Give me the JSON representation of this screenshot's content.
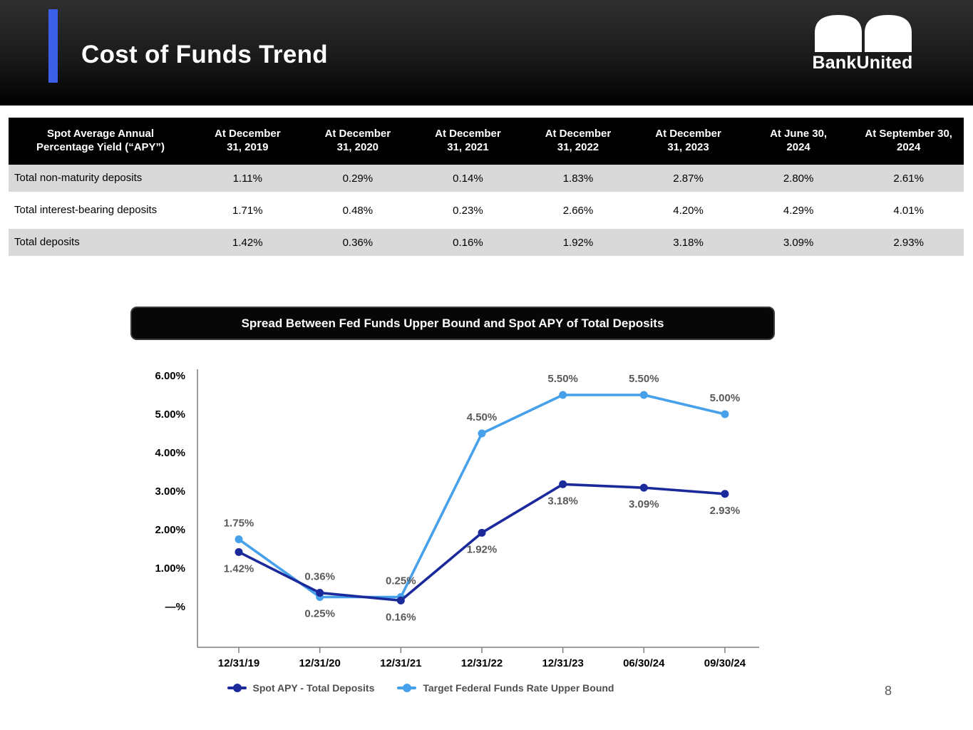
{
  "header": {
    "title": "Cost of Funds Trend",
    "logo_text": "BankUnited",
    "accent_color": "#3C5FE8"
  },
  "table": {
    "first_header": {
      "line1": "Spot Average Annual",
      "line2": "Percentage Yield (“APY”)"
    },
    "col_headers": [
      {
        "line1": "At December",
        "line2": "31, 2019"
      },
      {
        "line1": "At December",
        "line2": "31, 2020"
      },
      {
        "line1": "At December",
        "line2": "31, 2021"
      },
      {
        "line1": "At December",
        "line2": "31, 2022"
      },
      {
        "line1": "At December",
        "line2": "31, 2023"
      },
      {
        "line1": "At June 30,",
        "line2": "2024"
      },
      {
        "line1": "At September 30,",
        "line2": "2024"
      }
    ],
    "rows": [
      {
        "label": "Total non-maturity deposits",
        "values": [
          "1.11%",
          "0.29%",
          "0.14%",
          "1.83%",
          "2.87%",
          "2.80%",
          "2.61%"
        ]
      },
      {
        "label": "Total interest-bearing deposits",
        "values": [
          "1.71%",
          "0.48%",
          "0.23%",
          "2.66%",
          "4.20%",
          "4.29%",
          "4.01%"
        ]
      },
      {
        "label": "Total deposits",
        "values": [
          "1.42%",
          "0.36%",
          "0.16%",
          "1.92%",
          "3.18%",
          "3.09%",
          "2.93%"
        ]
      }
    ]
  },
  "chart_data": {
    "type": "line",
    "title": "Spread Between Fed Funds Upper Bound and Spot APY of Total Deposits",
    "x_labels": [
      "12/31/19",
      "12/31/20",
      "12/31/21",
      "12/31/22",
      "12/31/23",
      "06/30/24",
      "09/30/24"
    ],
    "y_ticks": [
      {
        "value": 6,
        "label": "6.00%"
      },
      {
        "value": 5,
        "label": "5.00%"
      },
      {
        "value": 4,
        "label": "4.00%"
      },
      {
        "value": 3,
        "label": "3.00%"
      },
      {
        "value": 2,
        "label": "2.00%"
      },
      {
        "value": 1,
        "label": "1.00%"
      },
      {
        "value": 0,
        "label": "—%"
      }
    ],
    "ylim": [
      0,
      6
    ],
    "grid": false,
    "legend_position": "bottom",
    "series": [
      {
        "name": "Spot APY - Total Deposits",
        "color": "#1B2A9B",
        "values": [
          1.42,
          0.36,
          0.16,
          1.92,
          3.18,
          3.09,
          2.93
        ],
        "point_labels": [
          "1.42%",
          "0.36%",
          "0.16%",
          "1.92%",
          "3.18%",
          "3.09%",
          "2.93%"
        ],
        "label_side": [
          "below",
          "above",
          "below",
          "below",
          "below",
          "below",
          "below"
        ]
      },
      {
        "name": "Target Federal Funds Rate Upper Bound",
        "color": "#47A0EA",
        "values": [
          1.75,
          0.25,
          0.25,
          4.5,
          5.5,
          5.5,
          5.0
        ],
        "point_labels": [
          "1.75%",
          "0.25%",
          "0.25%",
          "4.50%",
          "5.50%",
          "5.50%",
          "5.00%"
        ],
        "label_side": [
          "above",
          "below",
          "above",
          "above",
          "above",
          "above",
          "above"
        ]
      }
    ]
  },
  "page_number": "8"
}
